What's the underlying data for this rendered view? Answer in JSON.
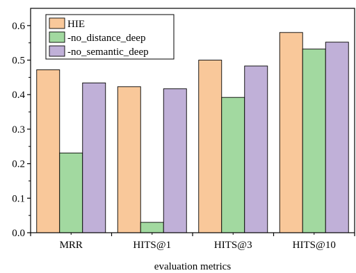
{
  "chart_data": {
    "type": "bar",
    "categories": [
      "MRR",
      "HITS@1",
      "HITS@3",
      "HITS@10"
    ],
    "series": [
      {
        "name": "HIE",
        "values": [
          0.472,
          0.423,
          0.5,
          0.58
        ],
        "color": "#F9C89A"
      },
      {
        "name": "-no_distance_deep",
        "values": [
          0.231,
          0.03,
          0.392,
          0.532
        ],
        "color": "#A2D9A0"
      },
      {
        "name": "-no_semantic_deep",
        "values": [
          0.434,
          0.417,
          0.483,
          0.552
        ],
        "color": "#C0B0D8"
      }
    ],
    "title": "",
    "xlabel": "evaluation metrics",
    "ylabel": "",
    "ylim": [
      0,
      0.65
    ],
    "yticks": [
      "0.0",
      "0.1",
      "0.2",
      "0.3",
      "0.4",
      "0.5",
      "0.6"
    ],
    "grid": false,
    "legend_position": "top-left"
  }
}
